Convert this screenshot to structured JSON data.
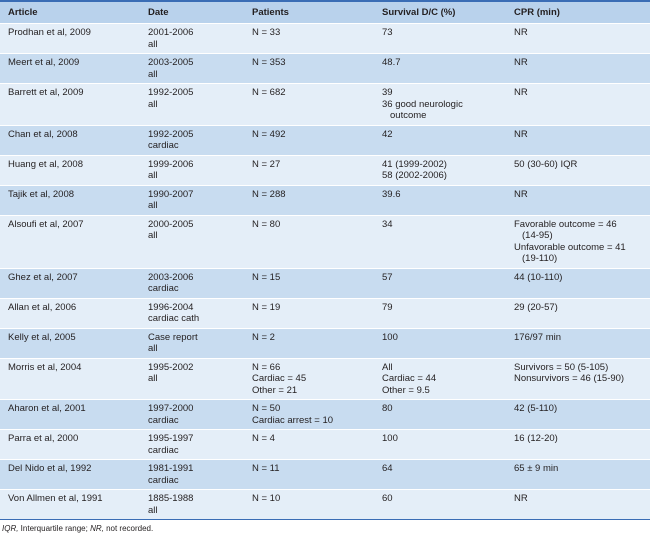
{
  "table": {
    "headers": [
      "Article",
      "Date",
      "Patients",
      "Survival D/C (%)",
      "CPR (min)"
    ],
    "rows": [
      {
        "article": "Prodhan et al, 2009",
        "date": [
          "2001-2006",
          "all"
        ],
        "patients": [
          "N = 33"
        ],
        "survival": [
          "73"
        ],
        "cpr": [
          "NR"
        ]
      },
      {
        "article": "Meert et al, 2009",
        "date": [
          "2003-2005",
          "all"
        ],
        "patients": [
          "N = 353"
        ],
        "survival": [
          "48.7"
        ],
        "cpr": [
          "NR"
        ]
      },
      {
        "article": "Barrett et al, 2009",
        "date": [
          "1992-2005",
          "all"
        ],
        "patients": [
          "N = 682"
        ],
        "survival": [
          "39",
          "36 good neurologic",
          "outcome"
        ],
        "cpr": [
          "NR"
        ]
      },
      {
        "article": "Chan et al, 2008",
        "date": [
          "1992-2005",
          "cardiac"
        ],
        "patients": [
          "N = 492"
        ],
        "survival": [
          "42"
        ],
        "cpr": [
          "NR"
        ]
      },
      {
        "article": "Huang et al, 2008",
        "date": [
          "1999-2006",
          "all"
        ],
        "patients": [
          "N = 27"
        ],
        "survival": [
          "41 (1999-2002)",
          "58 (2002-2006)"
        ],
        "cpr": [
          "50 (30-60) IQR"
        ]
      },
      {
        "article": "Tajik et al, 2008",
        "date": [
          "1990-2007",
          "all"
        ],
        "patients": [
          "N = 288"
        ],
        "survival": [
          "39.6"
        ],
        "cpr": [
          "NR"
        ]
      },
      {
        "article": "Alsoufi et al, 2007",
        "date": [
          "2000-2005",
          "all"
        ],
        "patients": [
          "N = 80"
        ],
        "survival": [
          "34"
        ],
        "cpr": [
          "Favorable outcome = 46",
          "(14-95)",
          "Unfavorable outcome = 41",
          "(19-110)"
        ]
      },
      {
        "article": "Ghez et al, 2007",
        "date": [
          "2003-2006",
          "cardiac"
        ],
        "patients": [
          "N = 15"
        ],
        "survival": [
          "57"
        ],
        "cpr": [
          "44 (10-110)"
        ]
      },
      {
        "article": "Allan et al, 2006",
        "date": [
          "1996-2004",
          "cardiac cath"
        ],
        "patients": [
          "N = 19"
        ],
        "survival": [
          "79"
        ],
        "cpr": [
          "29 (20-57)"
        ]
      },
      {
        "article": "Kelly et al, 2005",
        "date": [
          "Case report",
          "all"
        ],
        "patients": [
          "N = 2"
        ],
        "survival": [
          "100"
        ],
        "cpr": [
          "176/97 min"
        ]
      },
      {
        "article": "Morris et al, 2004",
        "date": [
          "1995-2002",
          "all"
        ],
        "patients": [
          "N = 66",
          "Cardiac = 45",
          "Other = 21"
        ],
        "survival": [
          "All",
          "Cardiac = 44",
          "Other = 9.5"
        ],
        "cpr": [
          "Survivors = 50 (5-105)",
          "Nonsurvivors = 46 (15-90)"
        ]
      },
      {
        "article": "Aharon et al, 2001",
        "date": [
          "1997-2000",
          "cardiac"
        ],
        "patients": [
          "N = 50",
          "Cardiac arrest = 10"
        ],
        "survival": [
          "80"
        ],
        "cpr": [
          "42 (5-110)"
        ]
      },
      {
        "article": "Parra et al, 2000",
        "date": [
          "1995-1997",
          "cardiac"
        ],
        "patients": [
          "N = 4"
        ],
        "survival": [
          "100"
        ],
        "cpr": [
          "16 (12-20)"
        ]
      },
      {
        "article": "Del Nido et al, 1992",
        "date": [
          "1981-1991",
          "cardiac"
        ],
        "patients": [
          "N = 11"
        ],
        "survival": [
          "64"
        ],
        "cpr": [
          "65 ± 9 min"
        ]
      },
      {
        "article": "Von Allmen et al, 1991",
        "date": [
          "1885-1988",
          "all"
        ],
        "patients": [
          "N = 10"
        ],
        "survival": [
          "60"
        ],
        "cpr": [
          "NR"
        ]
      }
    ]
  },
  "footnote": {
    "abbr1": "IQR,",
    "def1": " Interquartile range; ",
    "abbr2": "NR,",
    "def2": " not recorded."
  },
  "colors": {
    "header_bg": "#b9d2ec",
    "row_light": "#e4eef8",
    "row_dark": "#c8dcf0",
    "rule": "#3a6db5"
  }
}
